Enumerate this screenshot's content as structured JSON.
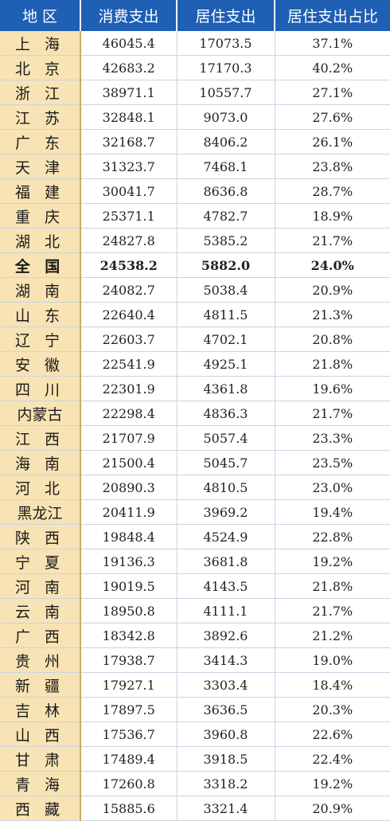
{
  "headers": [
    "地 区",
    "消费支出",
    "居住支出",
    "居住支出占比"
  ],
  "rows": [
    {
      "region": "上 海",
      "consumption": "46045.4",
      "housing": "17073.5",
      "share": "37.1%"
    },
    {
      "region": "北 京",
      "consumption": "42683.2",
      "housing": "17170.3",
      "share": "40.2%"
    },
    {
      "region": "浙 江",
      "consumption": "38971.1",
      "housing": "10557.7",
      "share": "27.1%"
    },
    {
      "region": "江 苏",
      "consumption": "32848.1",
      "housing": "9073.0",
      "share": "27.6%"
    },
    {
      "region": "广 东",
      "consumption": "32168.7",
      "housing": "8406.2",
      "share": "26.1%"
    },
    {
      "region": "天 津",
      "consumption": "31323.7",
      "housing": "7468.1",
      "share": "23.8%"
    },
    {
      "region": "福 建",
      "consumption": "30041.7",
      "housing": "8636.8",
      "share": "28.7%"
    },
    {
      "region": "重 庆",
      "consumption": "25371.1",
      "housing": "4782.7",
      "share": "18.9%"
    },
    {
      "region": "湖 北",
      "consumption": "24827.8",
      "housing": "5385.2",
      "share": "21.7%"
    },
    {
      "region": "全 国",
      "consumption": "24538.2",
      "housing": "5882.0",
      "share": "24.0%"
    },
    {
      "region": "湖 南",
      "consumption": "24082.7",
      "housing": "5038.4",
      "share": "20.9%"
    },
    {
      "region": "山 东",
      "consumption": "22640.4",
      "housing": "4811.5",
      "share": "21.3%"
    },
    {
      "region": "辽 宁",
      "consumption": "22603.7",
      "housing": "4702.1",
      "share": "20.8%"
    },
    {
      "region": "安 徽",
      "consumption": "22541.9",
      "housing": "4925.1",
      "share": "21.8%"
    },
    {
      "region": "四 川",
      "consumption": "22301.9",
      "housing": "4361.8",
      "share": "19.6%"
    },
    {
      "region": "内蒙古",
      "consumption": "22298.4",
      "housing": "4836.3",
      "share": "21.7%"
    },
    {
      "region": "江 西",
      "consumption": "21707.9",
      "housing": "5057.4",
      "share": "23.3%"
    },
    {
      "region": "海 南",
      "consumption": "21500.4",
      "housing": "5045.7",
      "share": "23.5%"
    },
    {
      "region": "河 北",
      "consumption": "20890.3",
      "housing": "4810.5",
      "share": "23.0%"
    },
    {
      "region": "黑龙江",
      "consumption": "20411.9",
      "housing": "3969.2",
      "share": "19.4%"
    },
    {
      "region": "陕 西",
      "consumption": "19848.4",
      "housing": "4524.9",
      "share": "22.8%"
    },
    {
      "region": "宁 夏",
      "consumption": "19136.3",
      "housing": "3681.8",
      "share": "19.2%"
    },
    {
      "region": "河 南",
      "consumption": "19019.5",
      "housing": "4143.5",
      "share": "21.8%"
    },
    {
      "region": "云 南",
      "consumption": "18950.8",
      "housing": "4111.1",
      "share": "21.7%"
    },
    {
      "region": "广 西",
      "consumption": "18342.8",
      "housing": "3892.6",
      "share": "21.2%"
    },
    {
      "region": "贵 州",
      "consumption": "17938.7",
      "housing": "3414.3",
      "share": "19.0%"
    },
    {
      "region": "新 疆",
      "consumption": "17927.1",
      "housing": "3303.4",
      "share": "18.4%"
    },
    {
      "region": "吉 林",
      "consumption": "17897.5",
      "housing": "3636.5",
      "share": "20.3%"
    },
    {
      "region": "山 西",
      "consumption": "17536.7",
      "housing": "3960.8",
      "share": "22.6%"
    },
    {
      "region": "甘 肃",
      "consumption": "17489.4",
      "housing": "3918.5",
      "share": "22.4%"
    },
    {
      "region": "青 海",
      "consumption": "17260.8",
      "housing": "3318.2",
      "share": "19.2%"
    },
    {
      "region": "西 藏",
      "consumption": "15885.6",
      "housing": "3321.4",
      "share": "20.9%"
    }
  ],
  "highlight_row": "全 国",
  "colors": {
    "header_bg": "#1f5fb4",
    "header_text": "#ffffff",
    "region_bg": "#f8e3b4",
    "grid": "#c8d4e3"
  }
}
